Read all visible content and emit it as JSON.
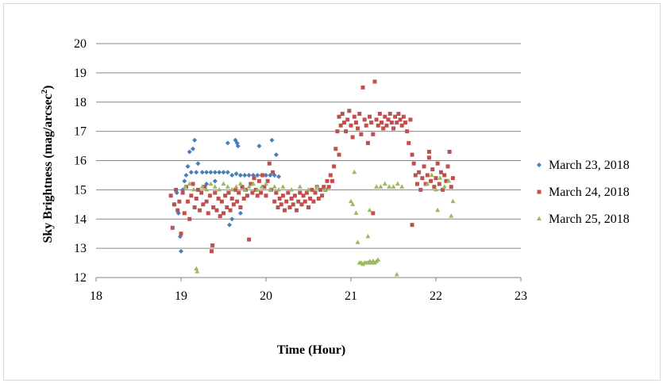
{
  "chart_data": {
    "type": "scatter",
    "title": "",
    "xlabel": "Time (Hour)",
    "ylabel": "Sky Brightness (mag/arcsec",
    "ylabel_sup": "2",
    "ylabel_tail": ")",
    "xlim": [
      18,
      23
    ],
    "ylim": [
      12,
      20
    ],
    "xticks": [
      "18",
      "19",
      "20",
      "21",
      "22",
      "23"
    ],
    "yticks": [
      "12",
      "13",
      "14",
      "15",
      "16",
      "17",
      "18",
      "19",
      "20"
    ],
    "grid": "horizontal",
    "legend_position": "right",
    "series": [
      {
        "name": "March 23, 2018",
        "marker": "diamond",
        "color": "#4a7ebb",
        "points": [
          [
            18.92,
            14.5
          ],
          [
            18.95,
            14.9
          ],
          [
            18.97,
            14.2
          ],
          [
            18.99,
            13.4
          ],
          [
            19.0,
            12.9
          ],
          [
            19.02,
            15.0
          ],
          [
            19.04,
            15.3
          ],
          [
            19.06,
            15.5
          ],
          [
            19.08,
            15.8
          ],
          [
            19.1,
            16.3
          ],
          [
            19.12,
            15.6
          ],
          [
            19.14,
            16.4
          ],
          [
            19.16,
            16.7
          ],
          [
            19.18,
            15.6
          ],
          [
            19.2,
            15.9
          ],
          [
            19.25,
            15.6
          ],
          [
            19.3,
            15.6
          ],
          [
            19.35,
            15.6
          ],
          [
            19.4,
            15.6
          ],
          [
            19.45,
            15.6
          ],
          [
            19.5,
            15.6
          ],
          [
            19.55,
            15.6
          ],
          [
            19.6,
            15.5
          ],
          [
            19.65,
            15.55
          ],
          [
            19.7,
            15.5
          ],
          [
            19.75,
            15.5
          ],
          [
            19.8,
            15.5
          ],
          [
            19.85,
            15.5
          ],
          [
            19.9,
            15.5
          ],
          [
            19.95,
            15.5
          ],
          [
            20.0,
            15.5
          ],
          [
            20.05,
            15.5
          ],
          [
            20.1,
            15.5
          ],
          [
            20.15,
            15.45
          ],
          [
            19.55,
            16.6
          ],
          [
            19.64,
            16.7
          ],
          [
            19.66,
            16.6
          ],
          [
            19.67,
            16.5
          ],
          [
            19.92,
            16.5
          ],
          [
            20.07,
            16.7
          ],
          [
            20.12,
            16.2
          ],
          [
            19.57,
            13.8
          ],
          [
            19.6,
            14.0
          ],
          [
            19.7,
            14.2
          ],
          [
            19.3,
            15.2
          ],
          [
            19.4,
            15.3
          ]
        ]
      },
      {
        "name": "March 24, 2018",
        "marker": "square",
        "color": "#c0504d",
        "points": [
          [
            18.88,
            14.8
          ],
          [
            18.9,
            13.7
          ],
          [
            18.92,
            14.5
          ],
          [
            18.94,
            15.0
          ],
          [
            18.96,
            14.3
          ],
          [
            18.98,
            14.6
          ],
          [
            19.0,
            13.5
          ],
          [
            19.02,
            14.9
          ],
          [
            19.04,
            14.2
          ],
          [
            19.06,
            15.1
          ],
          [
            19.08,
            14.6
          ],
          [
            19.1,
            14.0
          ],
          [
            19.12,
            14.8
          ],
          [
            19.14,
            15.2
          ],
          [
            19.16,
            14.4
          ],
          [
            19.18,
            14.7
          ],
          [
            19.2,
            15.0
          ],
          [
            19.22,
            14.3
          ],
          [
            19.24,
            14.9
          ],
          [
            19.26,
            14.5
          ],
          [
            19.28,
            15.1
          ],
          [
            19.3,
            14.6
          ],
          [
            19.32,
            14.2
          ],
          [
            19.34,
            14.8
          ],
          [
            19.36,
            12.9
          ],
          [
            19.37,
            13.1
          ],
          [
            19.38,
            14.4
          ],
          [
            19.4,
            14.9
          ],
          [
            19.42,
            14.3
          ],
          [
            19.44,
            14.7
          ],
          [
            19.46,
            14.1
          ],
          [
            19.48,
            14.6
          ],
          [
            19.5,
            14.2
          ],
          [
            19.52,
            14.8
          ],
          [
            19.54,
            14.4
          ],
          [
            19.56,
            14.9
          ],
          [
            19.58,
            14.3
          ],
          [
            19.6,
            14.7
          ],
          [
            19.62,
            14.5
          ],
          [
            19.64,
            15.0
          ],
          [
            19.66,
            14.6
          ],
          [
            19.68,
            14.9
          ],
          [
            19.7,
            14.4
          ],
          [
            19.72,
            15.1
          ],
          [
            19.74,
            14.7
          ],
          [
            19.76,
            15.0
          ],
          [
            19.78,
            14.8
          ],
          [
            19.8,
            13.3
          ],
          [
            19.82,
            15.2
          ],
          [
            19.84,
            14.9
          ],
          [
            19.86,
            15.4
          ],
          [
            19.88,
            15.0
          ],
          [
            19.9,
            14.8
          ],
          [
            19.92,
            15.3
          ],
          [
            19.94,
            14.9
          ],
          [
            19.96,
            15.5
          ],
          [
            19.98,
            15.1
          ],
          [
            20.0,
            14.8
          ],
          [
            20.02,
            15.3
          ],
          [
            20.04,
            15.9
          ],
          [
            20.06,
            15.0
          ],
          [
            20.08,
            15.6
          ],
          [
            20.1,
            14.6
          ],
          [
            20.12,
            14.9
          ],
          [
            20.14,
            14.4
          ],
          [
            20.16,
            14.7
          ],
          [
            20.18,
            14.5
          ],
          [
            20.2,
            14.8
          ],
          [
            20.22,
            14.3
          ],
          [
            20.24,
            14.6
          ],
          [
            20.26,
            14.9
          ],
          [
            20.28,
            14.4
          ],
          [
            20.3,
            14.7
          ],
          [
            20.32,
            14.5
          ],
          [
            20.34,
            14.8
          ],
          [
            20.36,
            14.3
          ],
          [
            20.38,
            14.6
          ],
          [
            20.4,
            14.9
          ],
          [
            20.42,
            14.5
          ],
          [
            20.44,
            14.8
          ],
          [
            20.46,
            14.6
          ],
          [
            20.48,
            14.9
          ],
          [
            20.5,
            14.4
          ],
          [
            20.52,
            14.7
          ],
          [
            20.54,
            15.0
          ],
          [
            20.56,
            14.6
          ],
          [
            20.58,
            14.9
          ],
          [
            20.6,
            15.1
          ],
          [
            20.62,
            14.7
          ],
          [
            20.64,
            15.0
          ],
          [
            20.66,
            14.8
          ],
          [
            20.68,
            15.1
          ],
          [
            20.7,
            15.0
          ],
          [
            20.72,
            15.3
          ],
          [
            20.74,
            15.1
          ],
          [
            20.76,
            15.5
          ],
          [
            20.78,
            15.3
          ],
          [
            20.8,
            15.8
          ],
          [
            20.82,
            16.4
          ],
          [
            20.84,
            17.0
          ],
          [
            20.86,
            17.5
          ],
          [
            20.88,
            17.2
          ],
          [
            20.9,
            17.6
          ],
          [
            20.92,
            17.3
          ],
          [
            20.94,
            17.0
          ],
          [
            20.96,
            17.4
          ],
          [
            20.98,
            17.7
          ],
          [
            21.0,
            17.2
          ],
          [
            21.02,
            16.8
          ],
          [
            21.04,
            17.5
          ],
          [
            21.06,
            17.3
          ],
          [
            21.08,
            17.1
          ],
          [
            21.1,
            17.6
          ],
          [
            21.12,
            16.9
          ],
          [
            21.14,
            18.5
          ],
          [
            21.16,
            17.4
          ],
          [
            21.18,
            17.2
          ],
          [
            21.2,
            16.6
          ],
          [
            21.22,
            17.5
          ],
          [
            21.24,
            17.3
          ],
          [
            21.26,
            16.9
          ],
          [
            21.28,
            18.7
          ],
          [
            21.3,
            17.4
          ],
          [
            21.32,
            17.2
          ],
          [
            21.34,
            17.6
          ],
          [
            21.36,
            17.3
          ],
          [
            21.38,
            17.1
          ],
          [
            21.4,
            17.5
          ],
          [
            21.42,
            17.2
          ],
          [
            21.44,
            17.4
          ],
          [
            21.46,
            17.6
          ],
          [
            21.48,
            17.3
          ],
          [
            21.5,
            17.1
          ],
          [
            21.52,
            17.5
          ],
          [
            21.54,
            17.3
          ],
          [
            21.56,
            17.6
          ],
          [
            21.58,
            17.4
          ],
          [
            21.6,
            17.2
          ],
          [
            21.62,
            17.5
          ],
          [
            21.64,
            17.3
          ],
          [
            21.66,
            17.0
          ],
          [
            21.68,
            16.6
          ],
          [
            21.7,
            17.4
          ],
          [
            21.72,
            16.2
          ],
          [
            21.74,
            15.9
          ],
          [
            21.76,
            15.5
          ],
          [
            21.78,
            15.2
          ],
          [
            21.8,
            15.6
          ],
          [
            21.82,
            15.0
          ],
          [
            21.84,
            15.4
          ],
          [
            21.86,
            15.8
          ],
          [
            21.88,
            15.2
          ],
          [
            21.9,
            15.5
          ],
          [
            21.92,
            16.1
          ],
          [
            21.94,
            15.3
          ],
          [
            21.96,
            15.7
          ],
          [
            21.98,
            15.1
          ],
          [
            22.0,
            15.4
          ],
          [
            22.02,
            15.9
          ],
          [
            22.04,
            15.2
          ],
          [
            22.06,
            15.6
          ],
          [
            22.08,
            15.0
          ],
          [
            22.1,
            15.5
          ],
          [
            22.12,
            15.3
          ],
          [
            22.14,
            15.8
          ],
          [
            22.16,
            16.3
          ],
          [
            22.18,
            15.1
          ],
          [
            22.2,
            15.4
          ],
          [
            21.72,
            13.8
          ],
          [
            21.26,
            14.2
          ],
          [
            21.92,
            16.3
          ],
          [
            20.86,
            16.2
          ]
        ]
      },
      {
        "name": "March 25, 2018",
        "marker": "triangle",
        "color": "#9bbb59",
        "points": [
          [
            19.05,
            15.1
          ],
          [
            19.1,
            15.2
          ],
          [
            19.15,
            15.0
          ],
          [
            19.18,
            12.3
          ],
          [
            19.19,
            12.2
          ],
          [
            19.25,
            15.1
          ],
          [
            19.3,
            15.0
          ],
          [
            19.35,
            15.2
          ],
          [
            19.4,
            15.1
          ],
          [
            19.45,
            15.0
          ],
          [
            19.5,
            15.2
          ],
          [
            19.55,
            15.1
          ],
          [
            19.6,
            15.0
          ],
          [
            19.65,
            15.1
          ],
          [
            19.7,
            15.2
          ],
          [
            19.75,
            15.0
          ],
          [
            19.8,
            15.1
          ],
          [
            19.85,
            15.2
          ],
          [
            19.9,
            15.0
          ],
          [
            19.95,
            15.1
          ],
          [
            20.0,
            15.2
          ],
          [
            20.05,
            15.0
          ],
          [
            20.1,
            15.1
          ],
          [
            20.15,
            15.0
          ],
          [
            20.2,
            15.1
          ],
          [
            20.3,
            15.0
          ],
          [
            20.4,
            15.1
          ],
          [
            20.5,
            15.0
          ],
          [
            20.6,
            15.1
          ],
          [
            20.7,
            15.0
          ],
          [
            21.0,
            14.6
          ],
          [
            21.02,
            14.5
          ],
          [
            21.04,
            15.6
          ],
          [
            21.06,
            14.2
          ],
          [
            21.08,
            13.2
          ],
          [
            21.1,
            12.5
          ],
          [
            21.12,
            12.5
          ],
          [
            21.14,
            12.45
          ],
          [
            21.16,
            12.5
          ],
          [
            21.18,
            12.5
          ],
          [
            21.2,
            12.5
          ],
          [
            21.22,
            12.55
          ],
          [
            21.24,
            12.5
          ],
          [
            21.26,
            12.55
          ],
          [
            21.28,
            12.5
          ],
          [
            21.3,
            12.55
          ],
          [
            21.32,
            12.6
          ],
          [
            21.2,
            13.4
          ],
          [
            21.22,
            14.3
          ],
          [
            21.3,
            15.1
          ],
          [
            21.35,
            15.1
          ],
          [
            21.4,
            15.2
          ],
          [
            21.45,
            15.1
          ],
          [
            21.5,
            15.1
          ],
          [
            21.55,
            15.2
          ],
          [
            21.6,
            15.1
          ],
          [
            21.54,
            12.1
          ],
          [
            21.9,
            15.2
          ],
          [
            21.95,
            15.5
          ],
          [
            22.0,
            15.0
          ],
          [
            22.05,
            15.4
          ],
          [
            22.1,
            15.1
          ],
          [
            22.15,
            15.3
          ],
          [
            22.2,
            14.6
          ],
          [
            22.18,
            14.1
          ],
          [
            22.02,
            14.3
          ]
        ]
      }
    ]
  }
}
